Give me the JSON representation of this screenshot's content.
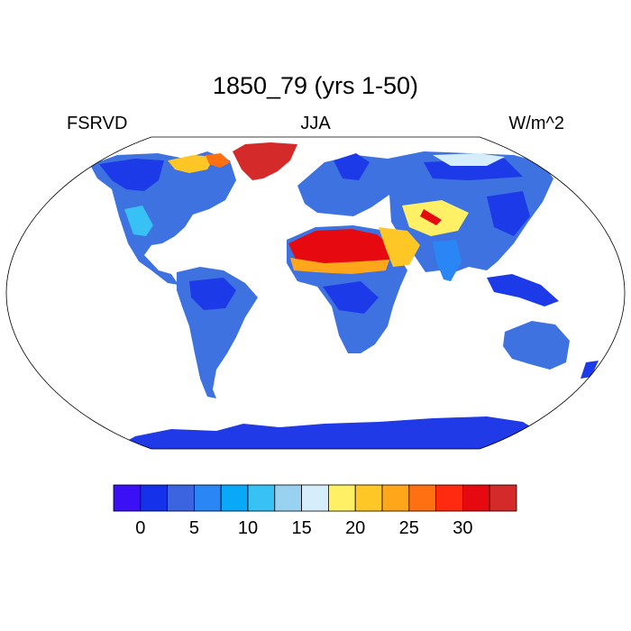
{
  "title": "1850_79 (yrs 1-50)",
  "left_label": "FSRVD",
  "center_label": "JJA",
  "right_label": "W/m^2",
  "colorbar": {
    "colors": [
      "#3b10f5",
      "#1532ea",
      "#3c63e0",
      "#2a86f5",
      "#0aa8f8",
      "#38c1f5",
      "#98d2f0",
      "#d6eefb",
      "#fff066",
      "#ffc726",
      "#ffa61a",
      "#ff7012",
      "#ff2a10",
      "#e60a10",
      "#d42a2a"
    ],
    "tick_labels": [
      "0",
      "5",
      "10",
      "15",
      "20",
      "25",
      "30"
    ]
  }
}
